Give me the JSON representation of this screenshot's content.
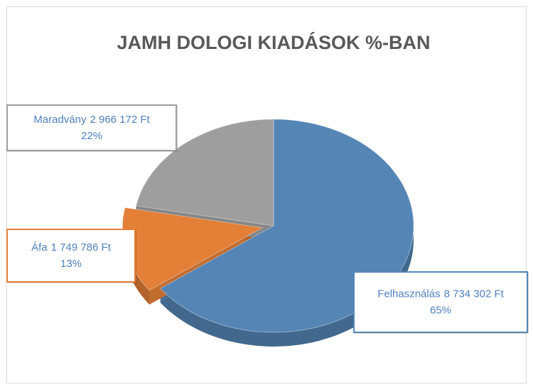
{
  "chart_data": {
    "type": "pie",
    "title": "JAMH DOLOGI KIADÁSOK %-BAN",
    "categories": [
      "Felhasználás",
      "Áfa",
      "Maradvány"
    ],
    "values": [
      65,
      13,
      22
    ],
    "value_labels": [
      "65%",
      "13%",
      "22%"
    ],
    "amounts": [
      8734302,
      1749786,
      2966172
    ],
    "amount_labels": [
      "8 734 302 Ft",
      "1 749 786 Ft",
      "2 966 172 Ft"
    ],
    "colors": [
      "#5585b5",
      "#e37f37",
      "#9e9e9e"
    ],
    "exploded": [
      false,
      true,
      false
    ]
  }
}
